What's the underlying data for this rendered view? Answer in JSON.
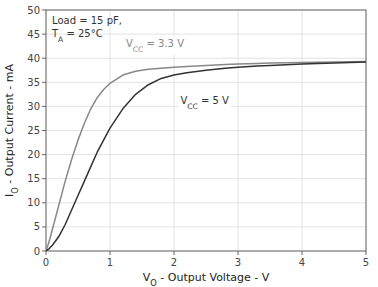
{
  "chart_data": {
    "type": "line",
    "xlabel": "VO - Output Voltage - V",
    "ylabel": "IO - Output Current - mA",
    "annotations": [
      "Load = 15 pF,",
      "TA = 25°C"
    ],
    "xlim": [
      0,
      5
    ],
    "ylim": [
      0,
      50
    ],
    "xticks": [
      0,
      1,
      2,
      3,
      4,
      5
    ],
    "yticks": [
      0,
      5,
      10,
      15,
      20,
      25,
      30,
      35,
      40,
      45,
      50
    ],
    "grid": true,
    "series": [
      {
        "name": "VCC = 3.3 V",
        "color": "#888888",
        "x": [
          0,
          0.05,
          0.1,
          0.15,
          0.2,
          0.3,
          0.4,
          0.5,
          0.6,
          0.7,
          0.8,
          0.9,
          1.0,
          1.2,
          1.4,
          1.6,
          1.8,
          2.0,
          2.2,
          2.5,
          2.8,
          3.0,
          3.3,
          3.5,
          4.0,
          4.5,
          5.0
        ],
        "values": [
          0,
          2.0,
          4.5,
          7.0,
          9.5,
          14.5,
          19.0,
          23.0,
          26.5,
          29.5,
          31.8,
          33.5,
          34.8,
          36.5,
          37.3,
          37.7,
          37.9,
          38.1,
          38.3,
          38.5,
          38.7,
          38.8,
          38.9,
          39.0,
          39.1,
          39.2,
          39.3
        ]
      },
      {
        "name": "VCC = 5 V",
        "color": "#333333",
        "x": [
          0,
          0.05,
          0.1,
          0.2,
          0.3,
          0.4,
          0.5,
          0.6,
          0.7,
          0.8,
          0.9,
          1.0,
          1.2,
          1.4,
          1.6,
          1.8,
          2.0,
          2.2,
          2.5,
          2.8,
          3.0,
          3.3,
          3.5,
          4.0,
          4.5,
          5.0
        ],
        "values": [
          0,
          0.5,
          1.2,
          3.0,
          5.5,
          8.5,
          11.5,
          14.5,
          17.5,
          20.5,
          23.0,
          25.5,
          29.5,
          32.5,
          34.5,
          35.8,
          36.5,
          37.0,
          37.5,
          37.9,
          38.1,
          38.4,
          38.5,
          38.8,
          39.0,
          39.2
        ]
      }
    ]
  }
}
